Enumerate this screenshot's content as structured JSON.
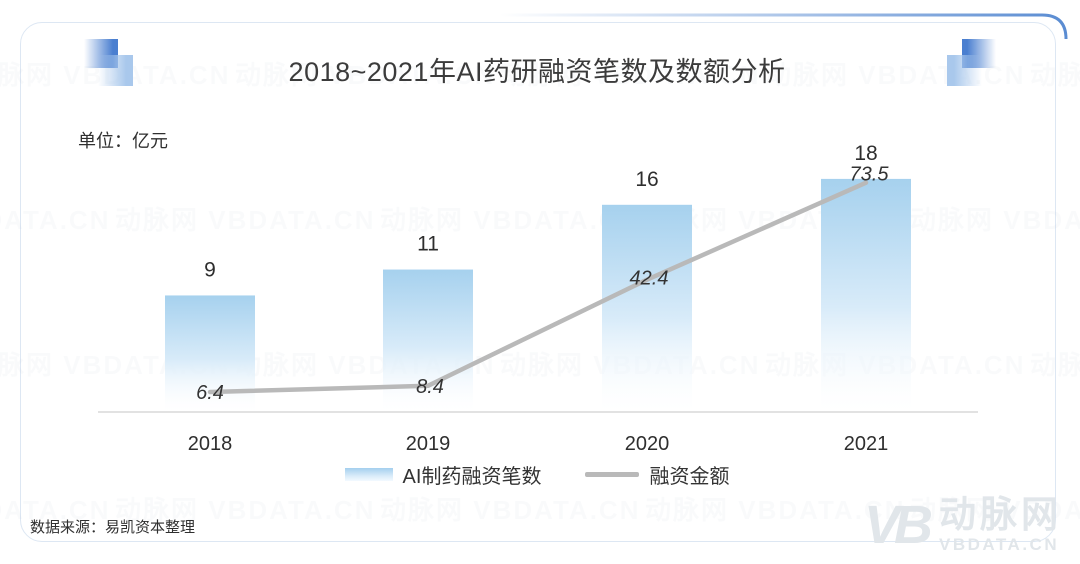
{
  "title": "2018~2021年AI药研融资笔数及数额分析",
  "unit_label": "单位：亿元",
  "source_note": "数据来源：易凯资本整理",
  "legend": {
    "bar_label": "AI制药融资笔数",
    "line_label": "融资金额"
  },
  "logo": {
    "mark": "VB",
    "name": "动脉网",
    "domain": "VBDATA.CN"
  },
  "colors": {
    "bar_gradient_top": "#a6d1ee",
    "bar_gradient_mid": "#d8ebf9",
    "bar_gradient_bottom": "#ffffff",
    "line": "#b9b9b9",
    "axis": "#d9d9d9",
    "accent_blue": "#5a8cd2",
    "accent_light_blue": "#b5d3ec",
    "text": "#333333"
  },
  "chart_data": {
    "type": "bar",
    "title": "2018~2021年AI药研融资笔数及数额分析",
    "unit": "亿元",
    "categories": [
      "2018",
      "2019",
      "2020",
      "2021"
    ],
    "series": [
      {
        "name": "AI制药融资笔数",
        "type": "bar",
        "values": [
          9,
          11,
          16,
          18
        ]
      },
      {
        "name": "融资金额",
        "type": "line",
        "values": [
          6.4,
          8.4,
          42.4,
          73.5
        ]
      }
    ],
    "xlabel": "",
    "ylabel": "",
    "grid": false,
    "legend_position": "bottom",
    "bar_value_labels": true,
    "line_value_labels": true
  }
}
